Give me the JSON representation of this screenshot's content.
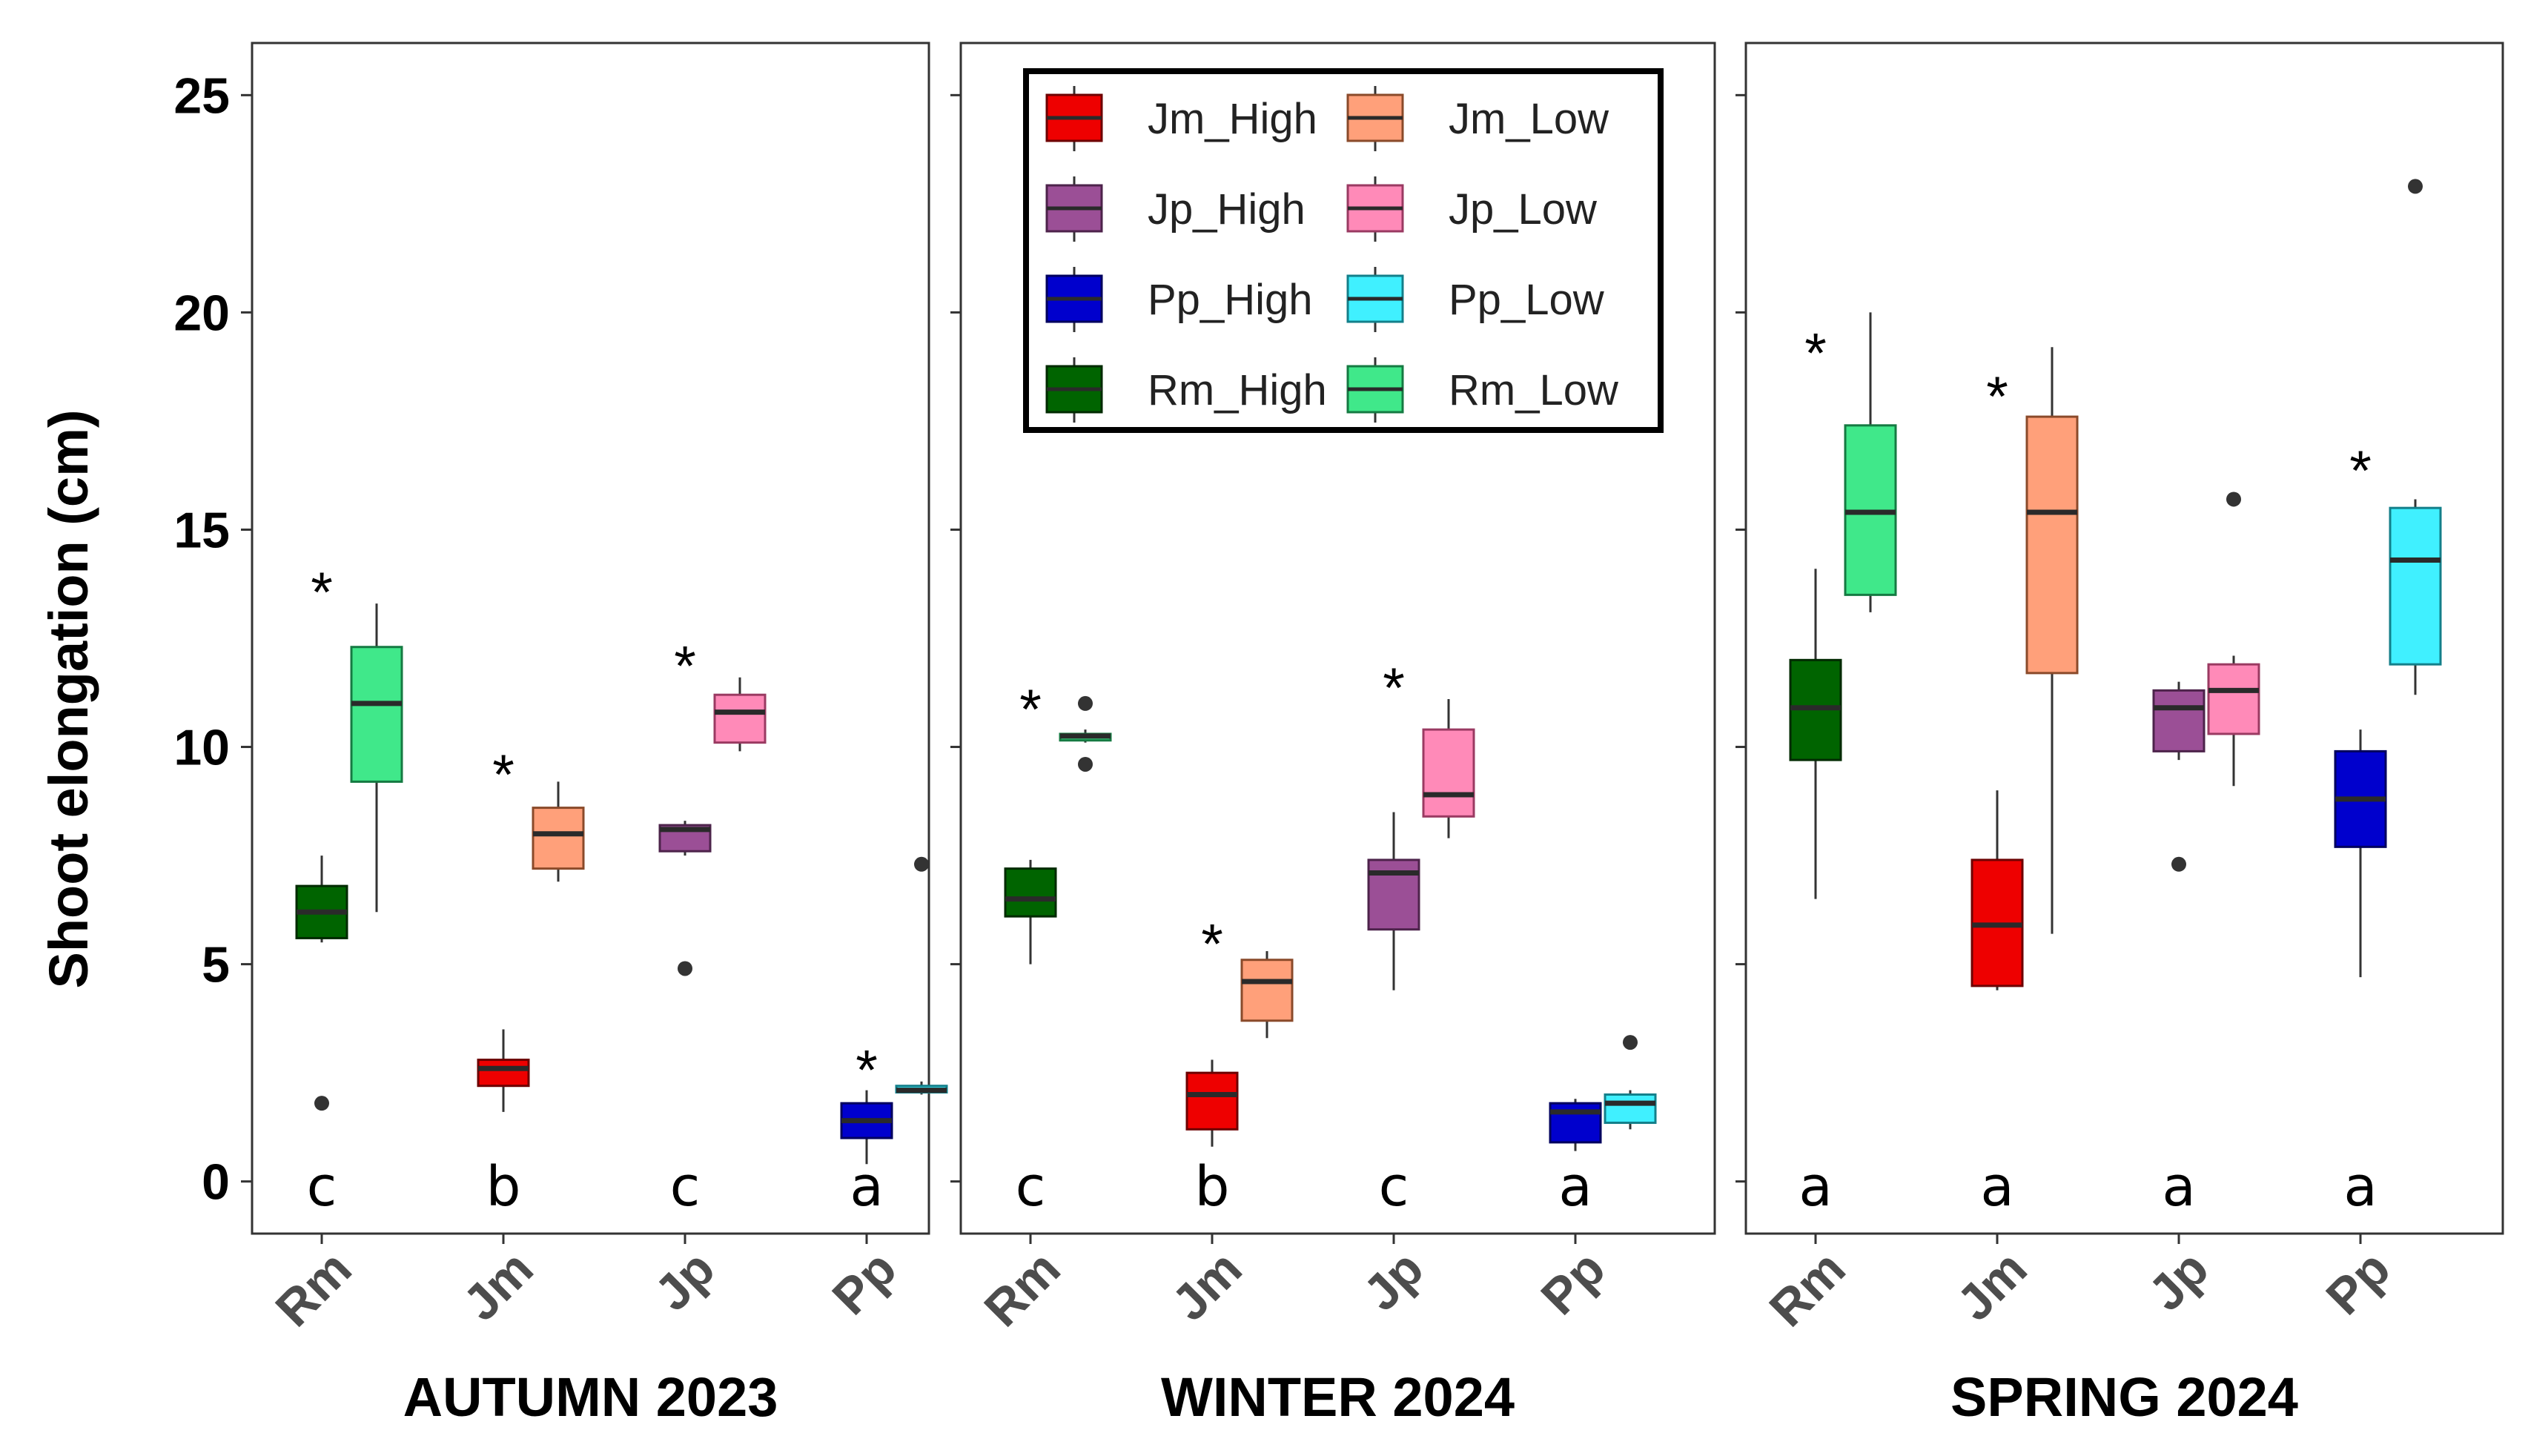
{
  "chart_data": {
    "type": "boxplot",
    "ylabel": "Shoot elongation (cm)",
    "ylim": [
      -1.2,
      26.2
    ],
    "yticks": [
      0,
      5,
      10,
      15,
      20,
      25
    ],
    "categories": [
      "Rm",
      "Jm",
      "Jp",
      "Pp"
    ],
    "legend": {
      "placement": "top-left of WINTER 2024 panel",
      "entries": [
        {
          "key": "Jm_High",
          "label": "Jm_High",
          "fill": "#ee0000",
          "line": "#6d0000"
        },
        {
          "key": "Jm_Low",
          "label": "Jm_Low",
          "fill": "#ffa07a",
          "line": "#8a4a2a"
        },
        {
          "key": "Jp_High",
          "label": "Jp_High",
          "fill": "#9b4f96",
          "line": "#4d234b"
        },
        {
          "key": "Jp_Low",
          "label": "Jp_Low",
          "fill": "#ff8ab8",
          "line": "#9a3a62"
        },
        {
          "key": "Pp_High",
          "label": "Pp_High",
          "fill": "#0000cd",
          "line": "#00005e"
        },
        {
          "key": "Pp_Low",
          "label": "Pp_Low",
          "fill": "#40f0ff",
          "line": "#137f8a"
        },
        {
          "key": "Rm_High",
          "label": "Rm_High",
          "fill": "#006400",
          "line": "#002a00"
        },
        {
          "key": "Rm_Low",
          "label": "Rm_Low",
          "fill": "#40e88a",
          "line": "#157a42"
        }
      ]
    },
    "panels": [
      {
        "title": "AUTUMN 2023",
        "letters": [
          "c",
          "b",
          "c",
          "a"
        ],
        "groups": [
          {
            "category": "Rm",
            "high": {
              "series": "Rm_High",
              "min": 5.5,
              "q1": 5.6,
              "median": 6.2,
              "q3": 6.8,
              "max": 7.5,
              "outliers": [
                1.8
              ]
            },
            "low": {
              "series": "Rm_Low",
              "min": 6.2,
              "q1": 9.2,
              "median": 11.0,
              "q3": 12.3,
              "max": 13.3,
              "outliers": []
            },
            "asterisk": {
              "text": "*",
              "y": 13.9
            }
          },
          {
            "category": "Jm",
            "high": {
              "series": "Jm_High",
              "min": 1.6,
              "q1": 2.2,
              "median": 2.6,
              "q3": 2.8,
              "max": 3.5,
              "outliers": []
            },
            "low": {
              "series": "Jm_Low",
              "min": 6.9,
              "q1": 7.2,
              "median": 8.0,
              "q3": 8.6,
              "max": 9.2,
              "outliers": []
            },
            "asterisk": {
              "text": "*",
              "y": 9.7
            }
          },
          {
            "category": "Jp",
            "high": {
              "series": "Jp_High",
              "min": 7.5,
              "q1": 7.6,
              "median": 8.1,
              "q3": 8.2,
              "max": 8.3,
              "outliers": [
                4.9
              ]
            },
            "low": {
              "series": "Jp_Low",
              "min": 9.9,
              "q1": 10.1,
              "median": 10.8,
              "q3": 11.2,
              "max": 11.6,
              "outliers": []
            },
            "asterisk": {
              "text": "*",
              "y": 12.2
            }
          },
          {
            "category": "Pp",
            "high": {
              "series": "Pp_High",
              "min": 0.4,
              "q1": 1.0,
              "median": 1.4,
              "q3": 1.8,
              "max": 2.1,
              "outliers": []
            },
            "low": {
              "series": "Pp_Low",
              "min": 2.0,
              "q1": 2.05,
              "median": 2.1,
              "q3": 2.2,
              "max": 2.3,
              "outliers": [
                7.3
              ]
            },
            "asterisk": {
              "text": "*",
              "y": 2.9
            }
          }
        ]
      },
      {
        "title": "WINTER 2024",
        "letters": [
          "c",
          "b",
          "c",
          "a"
        ],
        "groups": [
          {
            "category": "Rm",
            "high": {
              "series": "Rm_High",
              "min": 5.0,
              "q1": 6.1,
              "median": 6.5,
              "q3": 7.2,
              "max": 7.4,
              "outliers": []
            },
            "low": {
              "series": "Rm_Low",
              "min": 10.1,
              "q1": 10.15,
              "median": 10.25,
              "q3": 10.3,
              "max": 10.4,
              "outliers": [
                11.0,
                9.6
              ]
            },
            "asterisk": {
              "text": "*",
              "y": 11.2
            }
          },
          {
            "category": "Jm",
            "high": {
              "series": "Jm_High",
              "min": 0.8,
              "q1": 1.2,
              "median": 2.0,
              "q3": 2.5,
              "max": 2.8,
              "outliers": []
            },
            "low": {
              "series": "Jm_Low",
              "min": 3.3,
              "q1": 3.7,
              "median": 4.6,
              "q3": 5.1,
              "max": 5.3,
              "outliers": []
            },
            "asterisk": {
              "text": "*",
              "y": 5.8
            }
          },
          {
            "category": "Jp",
            "high": {
              "series": "Jp_High",
              "min": 4.4,
              "q1": 5.8,
              "median": 7.1,
              "q3": 7.4,
              "max": 8.5,
              "outliers": []
            },
            "low": {
              "series": "Jp_Low",
              "min": 7.9,
              "q1": 8.4,
              "median": 8.9,
              "q3": 10.4,
              "max": 11.1,
              "outliers": []
            },
            "asterisk": {
              "text": "*",
              "y": 11.7
            }
          },
          {
            "category": "Pp",
            "high": {
              "series": "Pp_High",
              "min": 0.7,
              "q1": 0.9,
              "median": 1.6,
              "q3": 1.8,
              "max": 1.9,
              "outliers": []
            },
            "low": {
              "series": "Pp_Low",
              "min": 1.2,
              "q1": 1.35,
              "median": 1.8,
              "q3": 2.0,
              "max": 2.1,
              "outliers": [
                3.2
              ]
            },
            "asterisk": null
          }
        ]
      },
      {
        "title": "SPRING 2024",
        "letters": [
          "a",
          "a",
          "a",
          "a"
        ],
        "groups": [
          {
            "category": "Rm",
            "high": {
              "series": "Rm_High",
              "min": 6.5,
              "q1": 9.7,
              "median": 10.9,
              "q3": 12.0,
              "max": 14.1,
              "outliers": []
            },
            "low": {
              "series": "Rm_Low",
              "min": 13.1,
              "q1": 13.5,
              "median": 15.4,
              "q3": 17.4,
              "max": 20.0,
              "outliers": []
            },
            "asterisk": {
              "text": "*",
              "y": 19.4
            }
          },
          {
            "category": "Jm",
            "high": {
              "series": "Jm_High",
              "min": 4.4,
              "q1": 4.5,
              "median": 5.9,
              "q3": 7.4,
              "max": 9.0,
              "outliers": []
            },
            "low": {
              "series": "Jm_Low",
              "min": 5.7,
              "q1": 11.7,
              "median": 15.4,
              "q3": 17.6,
              "max": 19.2,
              "outliers": []
            },
            "asterisk": {
              "text": "*",
              "y": 18.4
            }
          },
          {
            "category": "Jp",
            "high": {
              "series": "Jp_High",
              "min": 9.7,
              "q1": 9.9,
              "median": 10.9,
              "q3": 11.3,
              "max": 11.5,
              "outliers": [
                7.3
              ]
            },
            "low": {
              "series": "Jp_Low",
              "min": 9.1,
              "q1": 10.3,
              "median": 11.3,
              "q3": 11.9,
              "max": 12.1,
              "outliers": [
                15.7
              ]
            },
            "asterisk": null
          },
          {
            "category": "Pp",
            "high": {
              "series": "Pp_High",
              "min": 4.7,
              "q1": 7.7,
              "median": 8.8,
              "q3": 9.9,
              "max": 10.4,
              "outliers": []
            },
            "low": {
              "series": "Pp_Low",
              "min": 11.2,
              "q1": 11.9,
              "median": 14.3,
              "q3": 15.5,
              "max": 15.7,
              "outliers": [
                22.9
              ]
            },
            "asterisk": {
              "text": "*",
              "y": 16.7
            }
          }
        ]
      }
    ]
  }
}
